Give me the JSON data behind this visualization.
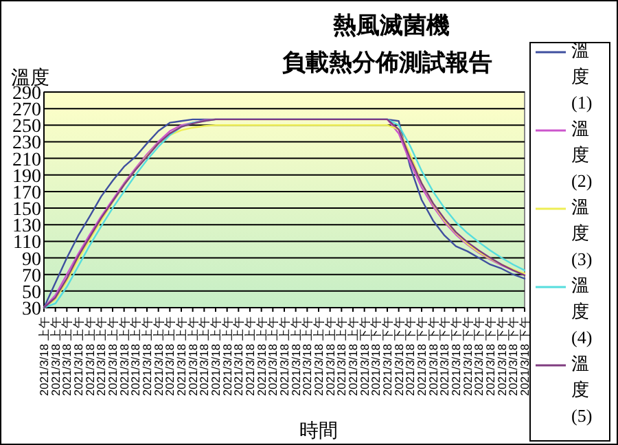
{
  "chart_data": {
    "type": "line",
    "title": "熱風滅菌機",
    "subtitle": "負載熱分佈測試報告",
    "xlabel": "時間",
    "ylabel": "溫度",
    "categories": [
      "2021/3/18 上午",
      "2021/3/18 上午",
      "2021/3/18 上午",
      "2021/3/18 上午",
      "2021/3/18 上午",
      "2021/3/18 上午",
      "2021/3/18 上午",
      "2021/3/18 上午",
      "2021/3/18 上午",
      "2021/3/18 上午",
      "2021/3/18 上午",
      "2021/3/18 上午",
      "2021/3/18 上午",
      "2021/3/18 上午",
      "2021/3/18 上午",
      "2021/3/18 上午",
      "2021/3/18 上午",
      "2021/3/18 上午",
      "2021/3/18 上午",
      "2021/3/18 上午",
      "2021/3/18 上午",
      "2021/3/18 上午",
      "2021/3/18 上午",
      "2021/3/18 上午",
      "2021/3/18 上午",
      "2021/3/18 上午",
      "2021/3/18 上午",
      "2021/3/18 上午",
      "2021/3/18 下午",
      "2021/3/18 下午",
      "2021/3/18 下午",
      "2021/3/18 下午",
      "2021/3/18 下午",
      "2021/3/18 下午",
      "2021/3/18 下午",
      "2021/3/18 下午",
      "2021/3/18 下午",
      "2021/3/18 下午",
      "2021/3/18 下午",
      "2021/3/18 下午",
      "2021/3/18 下午",
      "2021/3/18 下午",
      "2021/3/18 下午"
    ],
    "series": [
      {
        "name": "溫度(1)",
        "color": "#3f4f9f",
        "values": [
          30,
          60,
          90,
          117,
          140,
          164,
          183,
          200,
          212,
          228,
          243,
          253,
          255,
          257,
          257,
          257,
          257,
          257,
          257,
          257,
          257,
          257,
          257,
          257,
          257,
          257,
          257,
          257,
          257,
          257,
          257,
          255,
          200,
          160,
          135,
          117,
          104,
          98,
          90,
          82,
          77,
          70,
          65
        ]
      },
      {
        "name": "溫度(2)",
        "color": "#cc55cc",
        "values": [
          30,
          45,
          70,
          95,
          118,
          140,
          160,
          180,
          198,
          215,
          230,
          243,
          250,
          253,
          256,
          257,
          257,
          257,
          257,
          257,
          257,
          257,
          257,
          257,
          257,
          257,
          257,
          257,
          257,
          257,
          257,
          240,
          205,
          175,
          152,
          133,
          118,
          106,
          96,
          88,
          81,
          75,
          70
        ]
      },
      {
        "name": "溫度(3)",
        "color": "#eeee55",
        "values": [
          30,
          40,
          62,
          88,
          112,
          135,
          157,
          178,
          196,
          213,
          228,
          238,
          244,
          247,
          249,
          250,
          250,
          250,
          250,
          250,
          250,
          250,
          250,
          250,
          250,
          250,
          250,
          250,
          250,
          250,
          250,
          245,
          215,
          180,
          155,
          135,
          120,
          107,
          97,
          89,
          82,
          76,
          71
        ]
      },
      {
        "name": "溫度(4)",
        "color": "#55dddd",
        "values": [
          30,
          35,
          55,
          80,
          105,
          128,
          150,
          170,
          190,
          208,
          224,
          238,
          248,
          253,
          255,
          257,
          257,
          257,
          257,
          257,
          257,
          257,
          257,
          257,
          257,
          257,
          257,
          257,
          257,
          257,
          257,
          250,
          225,
          195,
          170,
          150,
          133,
          120,
          109,
          99,
          90,
          82,
          75
        ]
      },
      {
        "name": "溫度(5)",
        "color": "#803d80",
        "values": [
          30,
          42,
          65,
          92,
          115,
          138,
          158,
          178,
          196,
          212,
          228,
          240,
          248,
          252,
          255,
          257,
          257,
          257,
          257,
          257,
          257,
          257,
          257,
          257,
          257,
          257,
          257,
          257,
          257,
          257,
          257,
          245,
          210,
          180,
          156,
          137,
          121,
          109,
          99,
          90,
          82,
          75,
          69
        ]
      }
    ],
    "ylim": [
      30,
      290
    ],
    "yticks": [
      30,
      50,
      70,
      90,
      110,
      130,
      150,
      170,
      190,
      210,
      230,
      250,
      270,
      290
    ],
    "grid": "y",
    "legend": "right",
    "marker": "none",
    "line_style": "solid"
  }
}
